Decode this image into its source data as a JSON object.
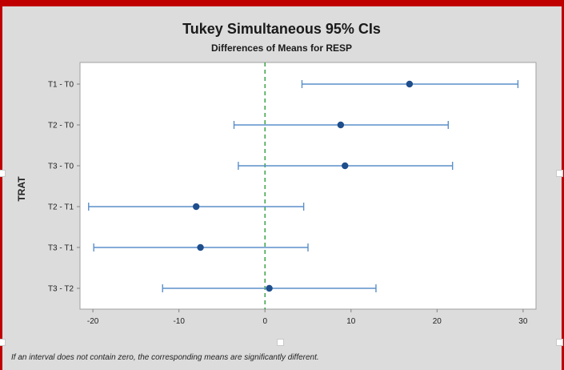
{
  "chart_data": {
    "type": "interval",
    "title": "Tukey Simultaneous 95% CIs",
    "subtitle": "Differences of Means for RESP",
    "ylabel": "TRAT",
    "xlabel": "",
    "x_ticks": [
      -20,
      -10,
      0,
      10,
      20,
      30
    ],
    "xlim": [
      -21.5,
      31.5
    ],
    "reference_line": 0,
    "grid": false,
    "categories": [
      "T1 - T0",
      "T2 - T0",
      "T3 - T0",
      "T2 - T1",
      "T3 - T1",
      "T3 - T2"
    ],
    "estimates": [
      16.8,
      8.8,
      9.3,
      -8.0,
      -7.5,
      0.5
    ],
    "lower": [
      4.3,
      -3.6,
      -3.1,
      -20.5,
      -19.9,
      -11.9
    ],
    "upper": [
      29.4,
      21.3,
      21.8,
      4.5,
      5.0,
      12.9
    ],
    "colors": {
      "interval": "#5b8fc9",
      "point": "#1f4e8c",
      "reference": "#2e9d3a"
    }
  },
  "footnote": "If an interval does not contain zero, the corresponding means are significantly different."
}
